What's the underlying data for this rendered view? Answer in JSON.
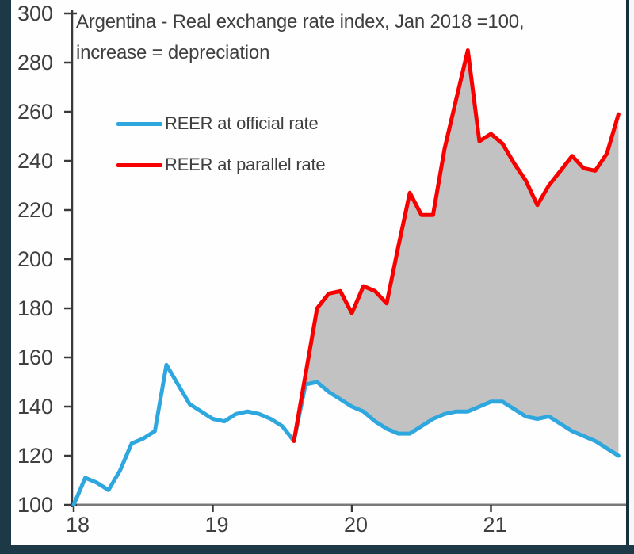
{
  "frame": {
    "outer_bg": "#1d3947",
    "panel_bg": "#fefefe",
    "right_edge_line": "#16303e",
    "y_axis_color": "#3a3a3a",
    "x_axis_color": "#7a7a7a",
    "text_color": "#3f3f3f"
  },
  "chart_data": {
    "type": "line",
    "title_line1": "Argentina - Real exchange rate index, Jan 2018 =100,",
    "title_line2": "increase = depreciation",
    "x_unit": "month",
    "x_start_label": "Jan 2018",
    "x_tick_labels": [
      "18",
      "19",
      "20",
      "21"
    ],
    "x_tick_months": [
      0,
      12,
      24,
      36
    ],
    "months_total": 48,
    "ylim": [
      100,
      300
    ],
    "y_ticks": [
      100,
      120,
      140,
      160,
      180,
      200,
      220,
      240,
      260,
      280,
      300
    ],
    "grid": false,
    "legend_position": "upper-left-inside",
    "fill_between": {
      "color": "#c2c2c2",
      "between": [
        "REER at parallel rate",
        "REER at official rate"
      ]
    },
    "series": [
      {
        "name": "REER at official rate",
        "color": "#2ea7df",
        "start_month_index": 0,
        "values": [
          100,
          111,
          109,
          106,
          114,
          125,
          127,
          130,
          157,
          149,
          141,
          138,
          135,
          134,
          137,
          138,
          137,
          135,
          132,
          126,
          149,
          150,
          146,
          143,
          140,
          138,
          134,
          131,
          129,
          129,
          132,
          135,
          137,
          138,
          138,
          140,
          142,
          142,
          139,
          136,
          135,
          136,
          133,
          130,
          128,
          126,
          123,
          120
        ]
      },
      {
        "name": "REER at parallel rate",
        "color": "#f80000",
        "start_month_index": 19,
        "values": [
          126,
          153,
          180,
          186,
          187,
          178,
          189,
          187,
          182,
          205,
          227,
          218,
          218,
          245,
          265,
          285,
          248,
          251,
          247,
          239,
          232,
          222,
          230,
          236,
          242,
          237,
          236,
          243,
          259
        ]
      }
    ]
  }
}
